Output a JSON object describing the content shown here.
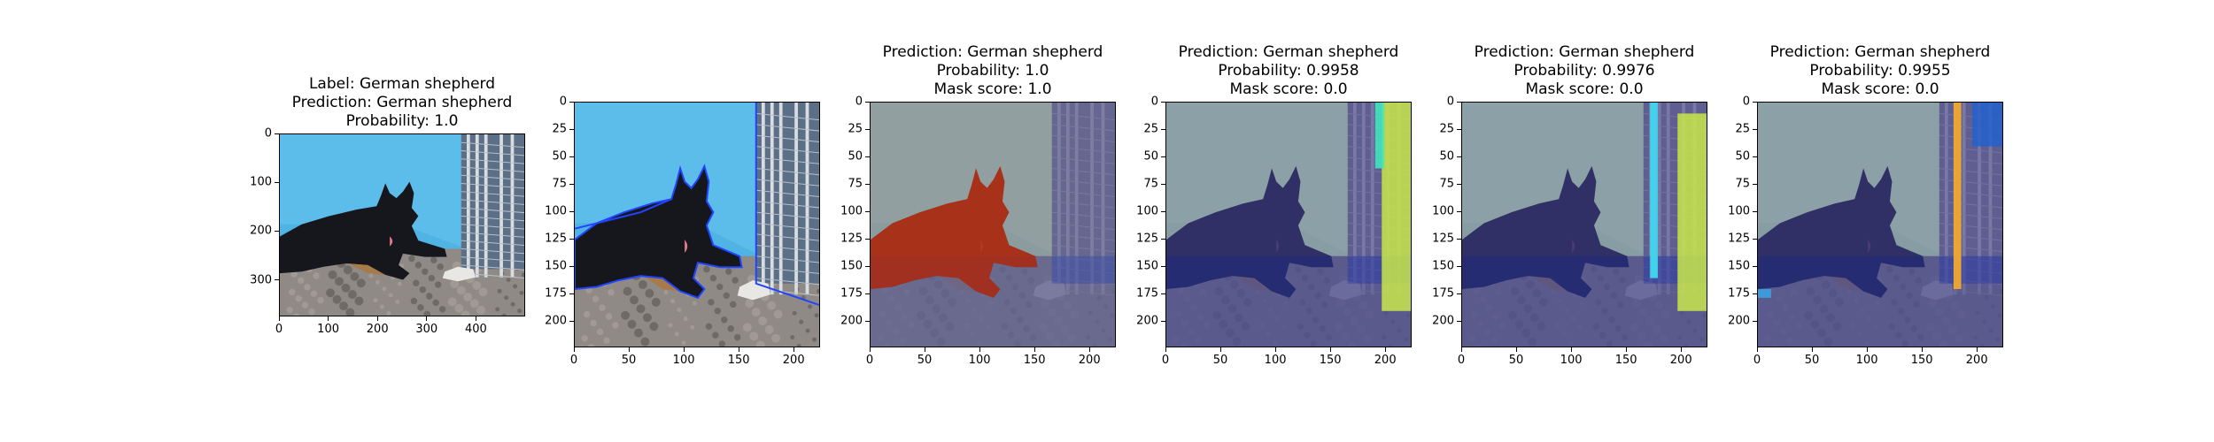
{
  "panels": [
    {
      "title_lines": [
        "Label: German shepherd",
        "Prediction: German shepherd",
        "Probability: 1.0"
      ],
      "x_ticks": [
        "0",
        "100",
        "200",
        "300",
        "400"
      ],
      "y_ticks": [
        "0",
        "100",
        "200",
        "300"
      ],
      "x_range": [
        0,
        500
      ],
      "y_range": [
        0,
        375
      ],
      "style": "original"
    },
    {
      "title_lines": [],
      "x_ticks": [
        "0",
        "50",
        "100",
        "150",
        "200"
      ],
      "y_ticks": [
        "0",
        "25",
        "50",
        "75",
        "100",
        "125",
        "150",
        "175",
        "200"
      ],
      "x_range": [
        0,
        224
      ],
      "y_range": [
        0,
        224
      ],
      "style": "outline"
    },
    {
      "title_lines": [
        "Prediction: German shepherd",
        "Probability: 1.0",
        "Mask score: 1.0"
      ],
      "x_ticks": [
        "0",
        "50",
        "100",
        "150",
        "200"
      ],
      "y_ticks": [
        "0",
        "25",
        "50",
        "75",
        "100",
        "125",
        "150",
        "175",
        "200"
      ],
      "x_range": [
        0,
        224
      ],
      "y_range": [
        0,
        224
      ],
      "style": "dog-mask"
    },
    {
      "title_lines": [
        "Prediction: German shepherd",
        "Probability: 0.9958",
        "Mask score: 0.0"
      ],
      "x_ticks": [
        "0",
        "50",
        "100",
        "150",
        "200"
      ],
      "y_ticks": [
        "0",
        "25",
        "50",
        "75",
        "100",
        "125",
        "150",
        "175",
        "200"
      ],
      "x_range": [
        0,
        224
      ],
      "y_range": [
        0,
        224
      ],
      "style": "fence-mask-green"
    },
    {
      "title_lines": [
        "Prediction: German shepherd",
        "Probability: 0.9976",
        "Mask score: 0.0"
      ],
      "x_ticks": [
        "0",
        "50",
        "100",
        "150",
        "200"
      ],
      "y_ticks": [
        "0",
        "25",
        "50",
        "75",
        "100",
        "125",
        "150",
        "175",
        "200"
      ],
      "x_range": [
        0,
        224
      ],
      "y_range": [
        0,
        224
      ],
      "style": "fence-mask-cyan"
    },
    {
      "title_lines": [
        "Prediction: German shepherd",
        "Probability: 0.9955",
        "Mask score: 0.0"
      ],
      "x_ticks": [
        "0",
        "50",
        "100",
        "150",
        "200"
      ],
      "y_ticks": [
        "0",
        "25",
        "50",
        "75",
        "100",
        "125",
        "150",
        "175",
        "200"
      ],
      "x_range": [
        0,
        224
      ],
      "y_range": [
        0,
        224
      ],
      "style": "fence-mask-orange"
    }
  ]
}
